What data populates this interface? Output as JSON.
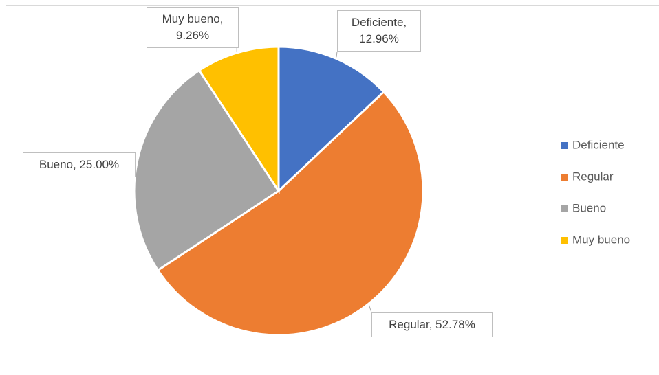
{
  "chart_data": {
    "type": "pie",
    "categories": [
      "Deficiente",
      "Regular",
      "Bueno",
      "Muy bueno"
    ],
    "values": [
      12.96,
      52.78,
      25.0,
      9.26
    ],
    "value_labels": [
      "Deficiente, 12.96%",
      "Regular, 52.78%",
      "Bueno, 25.00%",
      "Muy bueno, 9.26%"
    ],
    "colors": [
      "#4472c4",
      "#ed7d31",
      "#a5a5a5",
      "#ffc000"
    ],
    "legend": "right"
  }
}
